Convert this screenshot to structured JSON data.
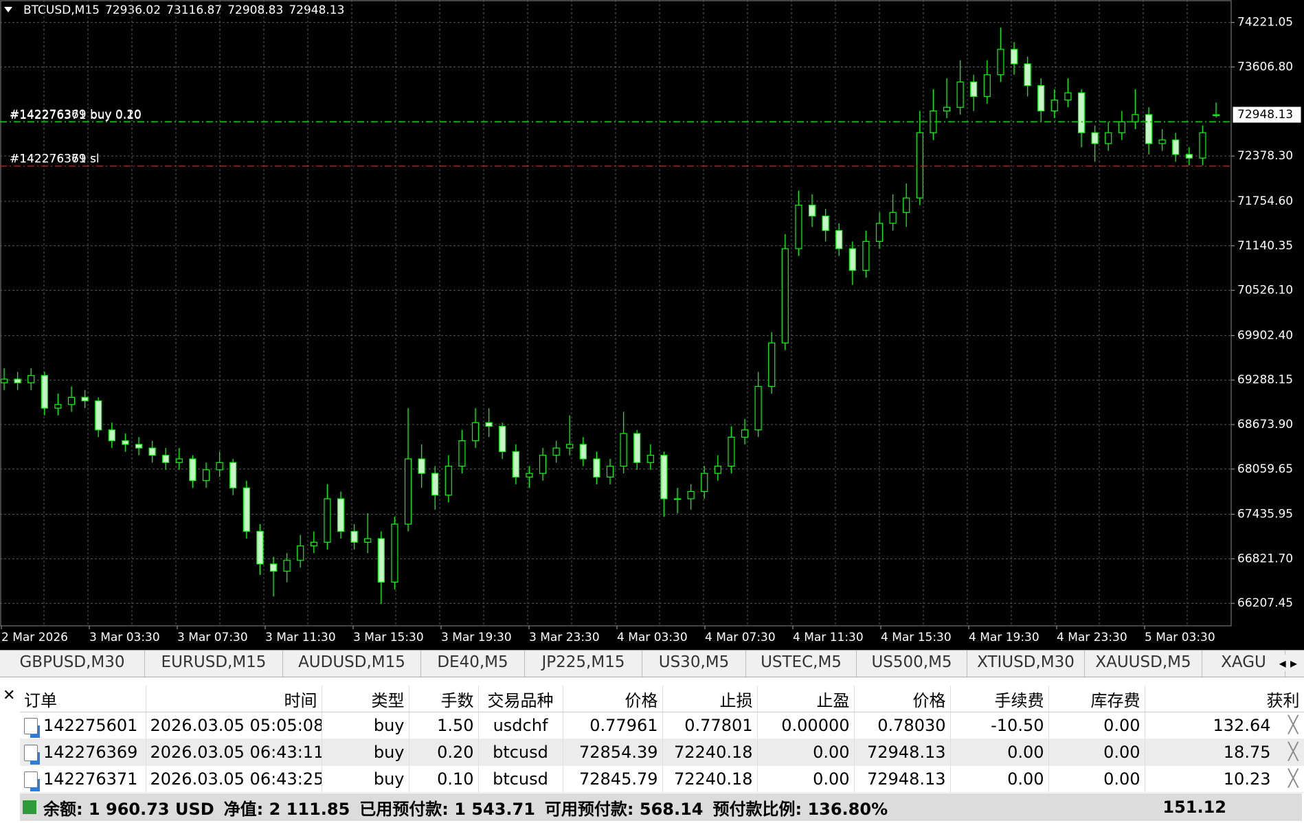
{
  "chart_data": {
    "type": "candlestick",
    "symbol": "BTCUSD,M15",
    "open": 72936.02,
    "high": 73116.87,
    "low": 72908.83,
    "close": 72948.13,
    "candles": [
      [
        69250,
        69450,
        69150,
        69300
      ],
      [
        69300,
        69400,
        69150,
        69250
      ],
      [
        69250,
        69450,
        69150,
        69350
      ],
      [
        69350,
        69400,
        68800,
        68900
      ],
      [
        68900,
        69100,
        68800,
        68950
      ],
      [
        68950,
        69200,
        68850,
        69050
      ],
      [
        69050,
        69150,
        68900,
        69000
      ],
      [
        69000,
        69050,
        68500,
        68600
      ],
      [
        68600,
        68700,
        68350,
        68450
      ],
      [
        68450,
        68550,
        68300,
        68400
      ],
      [
        68400,
        68500,
        68250,
        68350
      ],
      [
        68350,
        68450,
        68150,
        68250
      ],
      [
        68250,
        68350,
        68050,
        68150
      ],
      [
        68150,
        68350,
        68050,
        68200
      ],
      [
        68200,
        68250,
        67800,
        67900
      ],
      [
        67900,
        68150,
        67800,
        68050
      ],
      [
        68050,
        68300,
        67950,
        68150
      ],
      [
        68150,
        68200,
        67700,
        67800
      ],
      [
        67800,
        67900,
        67100,
        67200
      ],
      [
        67200,
        67300,
        66600,
        66750
      ],
      [
        66750,
        66850,
        66300,
        66650
      ],
      [
        66650,
        66900,
        66500,
        66800
      ],
      [
        66800,
        67150,
        66700,
        67000
      ],
      [
        67000,
        67200,
        66900,
        67050
      ],
      [
        67050,
        67850,
        66950,
        67650
      ],
      [
        67650,
        67750,
        67100,
        67200
      ],
      [
        67200,
        67300,
        66950,
        67050
      ],
      [
        67050,
        67450,
        66900,
        67100
      ],
      [
        67100,
        67200,
        66200,
        66500
      ],
      [
        66500,
        67400,
        66400,
        67300
      ],
      [
        67300,
        68900,
        67200,
        68200
      ],
      [
        68200,
        68400,
        67800,
        68000
      ],
      [
        68000,
        68100,
        67500,
        67700
      ],
      [
        67700,
        68250,
        67600,
        68100
      ],
      [
        68100,
        68600,
        68000,
        68450
      ],
      [
        68450,
        68900,
        68350,
        68700
      ],
      [
        68700,
        68900,
        68500,
        68650
      ],
      [
        68650,
        68700,
        68200,
        68300
      ],
      [
        68300,
        68400,
        67850,
        67950
      ],
      [
        67950,
        68100,
        67800,
        68000
      ],
      [
        68000,
        68350,
        67900,
        68250
      ],
      [
        68250,
        68450,
        68150,
        68350
      ],
      [
        68350,
        68800,
        68250,
        68400
      ],
      [
        68400,
        68500,
        68100,
        68200
      ],
      [
        68200,
        68300,
        67850,
        67950
      ],
      [
        67950,
        68200,
        67850,
        68100
      ],
      [
        68100,
        68850,
        68000,
        68550
      ],
      [
        68550,
        68600,
        68050,
        68150
      ],
      [
        68150,
        68400,
        68050,
        68250
      ],
      [
        68250,
        68300,
        67400,
        67650
      ],
      [
        67650,
        67800,
        67450,
        67650
      ],
      [
        67650,
        67850,
        67500,
        67750
      ],
      [
        67750,
        68100,
        67650,
        68000
      ],
      [
        68000,
        68250,
        67900,
        68100
      ],
      [
        68100,
        68650,
        68000,
        68500
      ],
      [
        68500,
        68750,
        68400,
        68600
      ],
      [
        68600,
        69400,
        68500,
        69200
      ],
      [
        69200,
        69950,
        69100,
        69800
      ],
      [
        69800,
        71300,
        69700,
        71100
      ],
      [
        71100,
        71900,
        71000,
        71700
      ],
      [
        71700,
        71850,
        71400,
        71550
      ],
      [
        71550,
        71650,
        71200,
        71350
      ],
      [
        71350,
        71450,
        71000,
        71100
      ],
      [
        71100,
        71200,
        70600,
        70800
      ],
      [
        70800,
        71350,
        70700,
        71200
      ],
      [
        71200,
        71600,
        71100,
        71450
      ],
      [
        71450,
        71850,
        71350,
        71600
      ],
      [
        71600,
        72000,
        71400,
        71800
      ],
      [
        71800,
        73000,
        71700,
        72700
      ],
      [
        72700,
        73300,
        72600,
        73000
      ],
      [
        73000,
        73450,
        72900,
        73050
      ],
      [
        73050,
        73700,
        72950,
        73400
      ],
      [
        73400,
        73500,
        73000,
        73200
      ],
      [
        73200,
        73700,
        73100,
        73500
      ],
      [
        73500,
        74150,
        73400,
        73850
      ],
      [
        73850,
        73950,
        73500,
        73650
      ],
      [
        73650,
        73750,
        73200,
        73350
      ],
      [
        73350,
        73450,
        72850,
        73000
      ],
      [
        73000,
        73300,
        72900,
        73150
      ],
      [
        73150,
        73450,
        73050,
        73250
      ],
      [
        73250,
        73300,
        72500,
        72700
      ],
      [
        72700,
        72800,
        72300,
        72550
      ],
      [
        72550,
        72850,
        72450,
        72700
      ],
      [
        72700,
        73000,
        72600,
        72850
      ],
      [
        72850,
        73300,
        72750,
        72950
      ],
      [
        72950,
        73050,
        72400,
        72550
      ],
      [
        72550,
        72750,
        72450,
        72600
      ],
      [
        72600,
        72700,
        72300,
        72400
      ],
      [
        72400,
        72500,
        72250,
        72350
      ],
      [
        72350,
        72800,
        72250,
        72700
      ]
    ],
    "ylim": [
      65897,
      74531
    ],
    "yticks": [
      74221.05,
      {
        "value": 73606.8,
        "label": "73606.80"
      },
      {
        "value": 72378.3,
        "label": "72378.30"
      },
      {
        "value": 71754.6,
        "label": "71754.60"
      },
      71140.35,
      {
        "value": 70526.1,
        "label": "70526.10"
      },
      {
        "value": 69902.4,
        "label": "69902.40"
      },
      69288.15,
      {
        "value": 68673.9,
        "label": "68673.90"
      },
      68059.65,
      67435.95,
      {
        "value": 66821.7,
        "label": "66821.70"
      },
      66207.45
    ],
    "x_labels": [
      "2 Mar 2026",
      "3 Mar 03:30",
      "3 Mar 07:30",
      "3 Mar 11:30",
      "3 Mar 15:30",
      "3 Mar 19:30",
      "3 Mar 23:30",
      "4 Mar 03:30",
      "4 Mar 07:30",
      "4 Mar 11:30",
      "4 Mar 15:30",
      "4 Mar 19:30",
      "4 Mar 23:30",
      "5 Mar 03:30"
    ],
    "grid": true,
    "up_color": "#00ff00",
    "bull_fill": "#000000",
    "bear_fill": "#c8f5c8",
    "order_lines": [
      {
        "label": "#142276369 buy 0.20",
        "price": 72854.39,
        "color": "#00c800"
      },
      {
        "label": "#142276371 buy 0.10",
        "price": 72845.79,
        "color": "#00c800"
      },
      {
        "label": "#142276369 sl",
        "price": 72240.18,
        "color": "#d02020"
      },
      {
        "label": "#142276371 sl",
        "price": 72240.18,
        "color": "#d02020"
      }
    ]
  },
  "tabs": [
    "GBPUSD,M30",
    "EURUSD,M15",
    "AUDUSD,M15",
    "DE40,M5",
    "JP225,M15",
    "US30,M5",
    "USTEC,M5",
    "US500,M5",
    "XTIUSD,M30",
    "XAUUSD,M5",
    "XAGU"
  ],
  "trades": {
    "headers": [
      "订单",
      "时间",
      "类型",
      "手数",
      "交易品种",
      "价格",
      "止损",
      "止盈",
      "价格",
      "手续费",
      "库存费",
      "获利"
    ],
    "rows": [
      [
        "142275601",
        "2026.03.05 05:05:08",
        "buy",
        "1.50",
        "usdchf",
        "0.77961",
        "0.77801",
        "0.00000",
        "0.78030",
        "-10.50",
        "0.00",
        "132.64"
      ],
      [
        "142276369",
        "2026.03.05 06:43:11",
        "buy",
        "0.20",
        "btcusd",
        "72854.39",
        "72240.18",
        "0.00",
        "72948.13",
        "0.00",
        "0.00",
        "18.75"
      ],
      [
        "142276371",
        "2026.03.05 06:43:25",
        "buy",
        "0.10",
        "btcusd",
        "72845.79",
        "72240.18",
        "0.00",
        "72948.13",
        "0.00",
        "0.00",
        "10.23"
      ]
    ]
  },
  "summary": {
    "items": [
      "余额: 1 960.73 USD",
      "净值: 2 111.85",
      "已用预付款: 1 543.71",
      "可用预付款: 568.14",
      "预付款比例: 136.80%"
    ],
    "total": "151.12"
  }
}
